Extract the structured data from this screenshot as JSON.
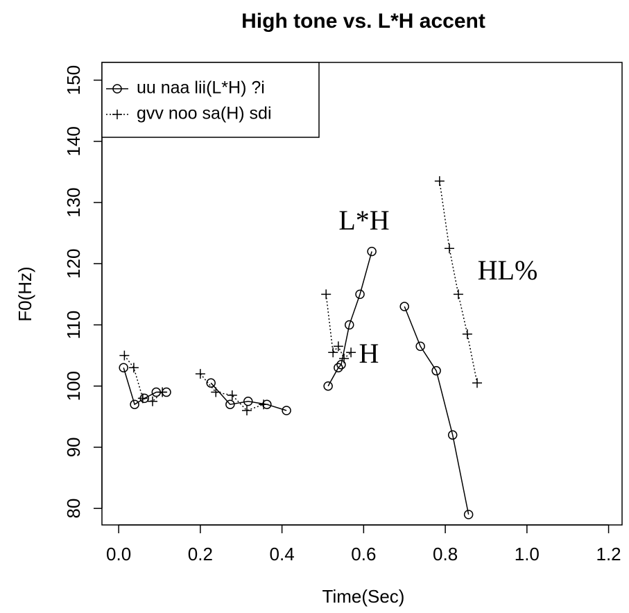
{
  "chart_data": {
    "type": "line",
    "title": "High tone vs. L*H accent",
    "x_label": "Time(Sec)",
    "y_label": "F0(Hz)",
    "xlim": [
      -0.041,
      1.233
    ],
    "ylim": [
      77.3,
      152.9
    ],
    "xticks": [
      {
        "value": 0,
        "label": "0.0"
      },
      0.2,
      0.4,
      0.6,
      0.8,
      {
        "value": 1,
        "label": "1.0"
      },
      1.2
    ],
    "yticks": [
      80,
      90,
      100,
      110,
      120,
      130,
      140,
      150
    ],
    "grid": false,
    "legend": "top-left",
    "series": [
      {
        "name": "uu naa lii(L*H) ?i",
        "color": "#000000",
        "marker": "circle",
        "linestyle": "solid",
        "x": [
          0.012,
          0.039,
          0.063,
          0.092,
          0.117,
          null,
          0.226,
          0.273,
          0.317,
          0.363,
          0.411,
          null,
          0.513,
          0.538,
          0.545,
          0.565,
          0.591,
          0.62,
          null,
          0.7,
          0.739,
          0.778,
          0.818,
          0.857
        ],
        "values": [
          103,
          97,
          98,
          99,
          99,
          null,
          100.5,
          97,
          97.5,
          97,
          96,
          null,
          100,
          103,
          103.5,
          110,
          115,
          122,
          null,
          113,
          106.5,
          102.5,
          92,
          79
        ]
      },
      {
        "name": "gvv noo sa(H) sdi",
        "color": "#000000",
        "marker": "plus",
        "linestyle": "dotted",
        "x": [
          0.014,
          0.037,
          0.059,
          0.083,
          0.107,
          null,
          0.2,
          0.238,
          0.278,
          0.314,
          0.355,
          null,
          0.508,
          0.525,
          0.538,
          0.552,
          0.569,
          null,
          0.786,
          0.81,
          0.832,
          0.854,
          0.878
        ],
        "values": [
          105,
          103,
          98,
          97.5,
          99,
          null,
          102,
          99,
          98.5,
          96,
          97,
          null,
          115,
          105.5,
          106.5,
          104.5,
          105.5,
          null,
          133.5,
          122.5,
          115,
          108.5,
          100.5
        ]
      }
    ],
    "annotations": [
      "L*H",
      "HL%",
      "H"
    ]
  }
}
